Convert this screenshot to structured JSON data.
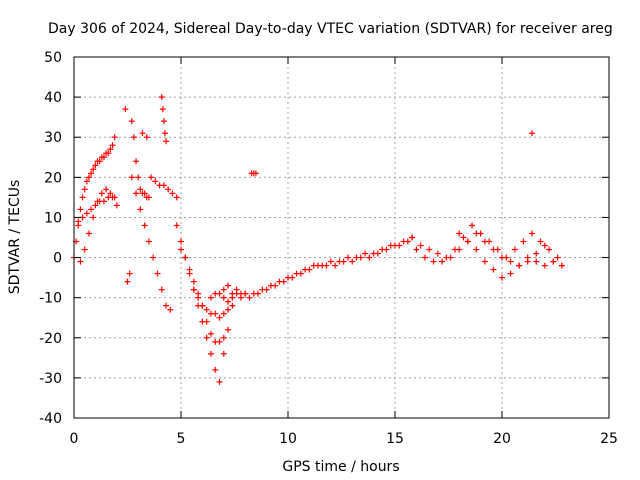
{
  "chart_data": {
    "type": "scatter",
    "title": "Day 306 of 2024, Sidereal Day-to-day VTEC variation (SDTVAR) for receiver areg",
    "xlabel": "GPS time / hours",
    "ylabel": "SDTVAR / TECUs",
    "xlim": [
      0,
      25
    ],
    "ylim": [
      -40,
      50
    ],
    "xticks": [
      0,
      5,
      10,
      15,
      20,
      25
    ],
    "yticks": [
      -40,
      -30,
      -20,
      -10,
      0,
      10,
      20,
      30,
      40,
      50
    ],
    "grid": true,
    "marker": "+",
    "color": "#ff0000",
    "series": [
      {
        "name": "SDTVAR",
        "x": [
          0.0,
          0.1,
          0.2,
          0.3,
          0.4,
          0.5,
          0.6,
          0.7,
          0.8,
          0.9,
          1.0,
          1.1,
          1.2,
          1.3,
          1.4,
          1.5,
          1.6,
          1.7,
          1.8,
          1.9,
          0.3,
          0.5,
          0.7,
          0.9,
          1.1,
          1.3,
          1.5,
          1.7,
          1.9,
          2.0,
          0.2,
          0.4,
          0.6,
          0.8,
          1.0,
          1.2,
          1.4,
          1.6,
          1.8,
          2.4,
          2.5,
          2.6,
          2.7,
          2.8,
          2.9,
          3.0,
          3.1,
          3.2,
          3.3,
          3.4,
          3.5,
          2.7,
          2.9,
          3.1,
          3.3,
          3.5,
          3.7,
          3.9,
          4.1,
          4.3,
          4.5,
          3.2,
          3.4,
          3.6,
          3.8,
          4.0,
          4.2,
          4.4,
          4.6,
          4.8,
          4.1,
          4.15,
          4.2,
          4.25,
          4.3,
          4.8,
          5.0,
          5.2,
          5.4,
          5.6,
          5.8,
          6.0,
          6.2,
          6.4,
          6.6,
          6.8,
          7.0,
          7.2,
          5.0,
          5.2,
          5.4,
          5.6,
          5.8,
          6.0,
          6.2,
          6.4,
          6.6,
          6.8,
          7.0,
          5.6,
          5.8,
          6.0,
          6.2,
          6.4,
          6.6,
          6.8,
          7.0,
          7.2,
          7.4,
          6.4,
          6.6,
          6.8,
          7.0,
          7.2,
          7.4,
          7.6,
          7.8,
          8.0,
          7.0,
          7.4,
          7.8,
          8.2,
          8.6,
          9.0,
          9.4,
          9.8,
          10.2,
          10.6,
          11.0,
          11.4,
          11.8,
          12.2,
          12.6,
          13.0,
          13.4,
          13.8,
          14.2,
          14.6,
          15.0,
          15.4,
          15.8,
          7.2,
          7.6,
          8.0,
          8.4,
          8.8,
          9.2,
          9.6,
          10.0,
          10.4,
          10.8,
          11.2,
          11.6,
          12.0,
          12.4,
          12.8,
          13.2,
          13.6,
          14.0,
          14.4,
          14.8,
          15.2,
          15.6,
          8.3,
          8.4,
          8.5,
          15.8,
          16.2,
          16.6,
          17.0,
          17.4,
          17.8,
          18.2,
          18.6,
          19.0,
          19.4,
          19.8,
          20.2,
          20.6,
          21.0,
          21.4,
          21.8,
          22.2,
          22.6,
          16.0,
          16.4,
          16.8,
          17.2,
          17.6,
          18.0,
          18.4,
          18.8,
          19.2,
          19.6,
          20.0,
          20.4,
          20.8,
          21.2,
          21.6,
          22.0,
          22.4,
          22.8,
          18.0,
          18.4,
          18.8,
          19.2,
          19.6,
          20.0,
          20.4,
          20.8,
          21.2,
          21.6,
          22.0,
          22.4,
          22.8,
          21.4
        ],
        "y": [
          0,
          4,
          8,
          12,
          15,
          17,
          19,
          20,
          21,
          22,
          23,
          24,
          24,
          25,
          25,
          26,
          26,
          27,
          28,
          30,
          -1,
          2,
          6,
          10,
          14,
          16,
          17,
          16,
          15,
          13,
          9,
          10,
          11,
          12,
          13,
          14,
          14,
          15,
          15,
          37,
          -6,
          -4,
          34,
          30,
          24,
          20,
          17,
          16,
          16,
          15,
          15,
          20,
          16,
          12,
          8,
          4,
          0,
          -4,
          -8,
          -12,
          -13,
          31,
          30,
          20,
          19,
          18,
          18,
          17,
          16,
          15,
          40,
          37,
          34,
          31,
          29,
          8,
          4,
          0,
          -4,
          -8,
          -12,
          -16,
          -20,
          -24,
          -28,
          -31,
          -24,
          -18,
          2,
          0,
          -3,
          -6,
          -9,
          -12,
          -16,
          -19,
          -21,
          -21,
          -20,
          -8,
          -10,
          -12,
          -13,
          -14,
          -14,
          -15,
          -14,
          -13,
          -12,
          -10,
          -9,
          -9,
          -10,
          -11,
          -10,
          -9,
          -9,
          -9,
          -8,
          -9,
          -10,
          -10,
          -9,
          -8,
          -7,
          -6,
          -5,
          -4,
          -3,
          -2,
          -2,
          -2,
          -1,
          -1,
          0,
          0,
          1,
          2,
          3,
          4,
          5,
          -7,
          -8,
          -9,
          -9,
          -8,
          -7,
          -6,
          -5,
          -4,
          -3,
          -2,
          -2,
          -1,
          -1,
          0,
          0,
          1,
          1,
          2,
          3,
          3,
          4,
          21,
          21,
          21,
          5,
          3,
          2,
          1,
          0,
          2,
          5,
          8,
          6,
          4,
          2,
          0,
          2,
          4,
          6,
          4,
          2,
          0,
          2,
          0,
          -1,
          -1,
          0,
          2,
          4,
          6,
          4,
          2,
          0,
          -1,
          -2,
          -1,
          1,
          3,
          -1,
          -2,
          6,
          4,
          2,
          -1,
          -3,
          -5,
          -4,
          -2,
          0,
          -1,
          -2,
          -1,
          -2,
          31
        ]
      }
    ]
  }
}
